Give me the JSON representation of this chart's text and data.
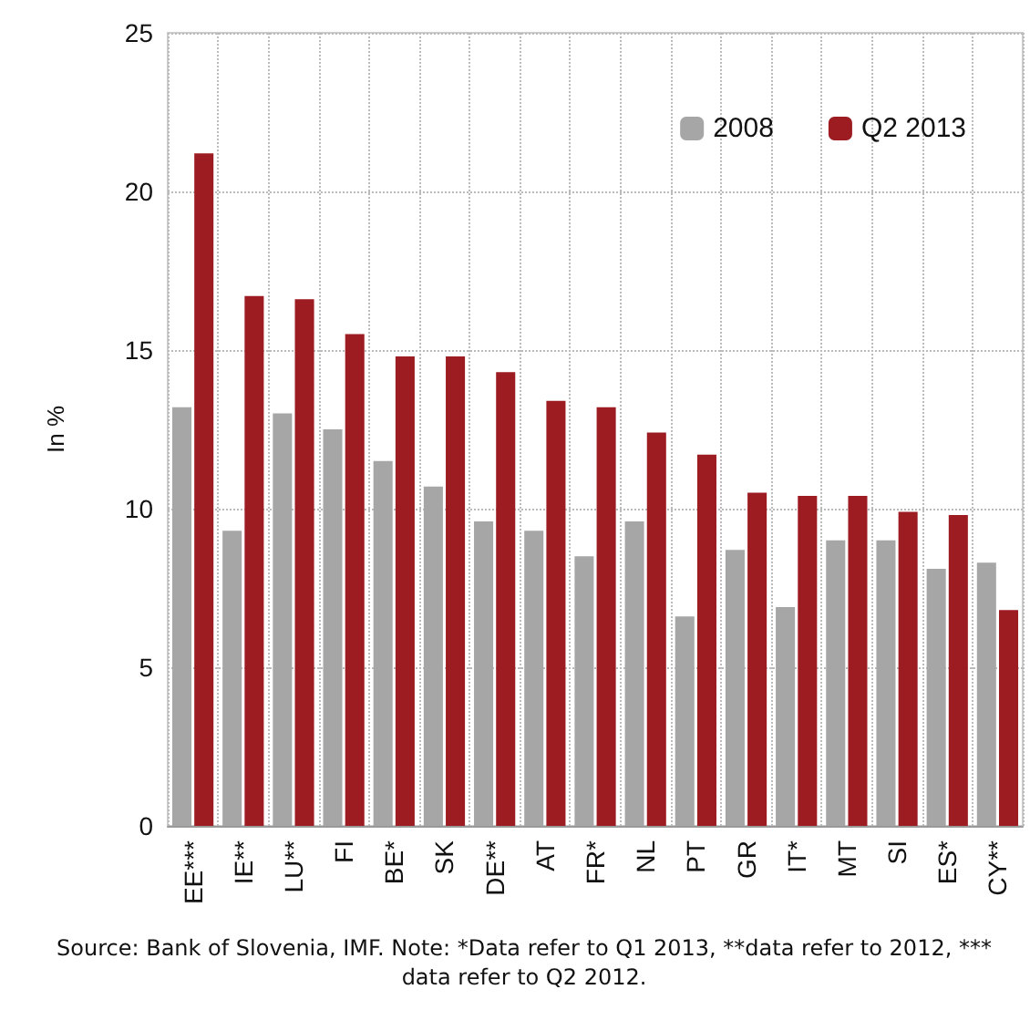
{
  "chart_data": {
    "type": "bar",
    "ylabel": "In %",
    "categories": [
      "EE***",
      "IE**",
      "LU**",
      "FI",
      "BE*",
      "SK",
      "DE**",
      "AT",
      "FR*",
      "NL",
      "PT",
      "GR",
      "IT*",
      "MT",
      "SI",
      "ES*",
      "CY**"
    ],
    "series": [
      {
        "name": "2008",
        "color": "#a6a6a6",
        "values": [
          13.2,
          9.3,
          13.0,
          12.5,
          11.5,
          10.7,
          9.6,
          9.3,
          8.5,
          9.6,
          6.6,
          8.7,
          6.9,
          9.0,
          9.0,
          8.1,
          8.3
        ]
      },
      {
        "name": "Q2 2013",
        "color": "#9c1c22",
        "values": [
          21.2,
          16.7,
          16.6,
          15.5,
          14.8,
          14.8,
          14.3,
          13.4,
          13.2,
          12.4,
          11.7,
          10.5,
          10.4,
          10.4,
          9.9,
          9.8,
          6.8
        ]
      }
    ],
    "ylim": [
      0,
      25
    ],
    "yticks": [
      0,
      5,
      10,
      15,
      20,
      25
    ],
    "grid": true,
    "legend": "top right",
    "annotations": [
      "Source: Bank of Slovenia, IMF. Note: *Data refer to Q1 2013, **data refer to 2012, *** data refer to Q2 2012."
    ]
  }
}
